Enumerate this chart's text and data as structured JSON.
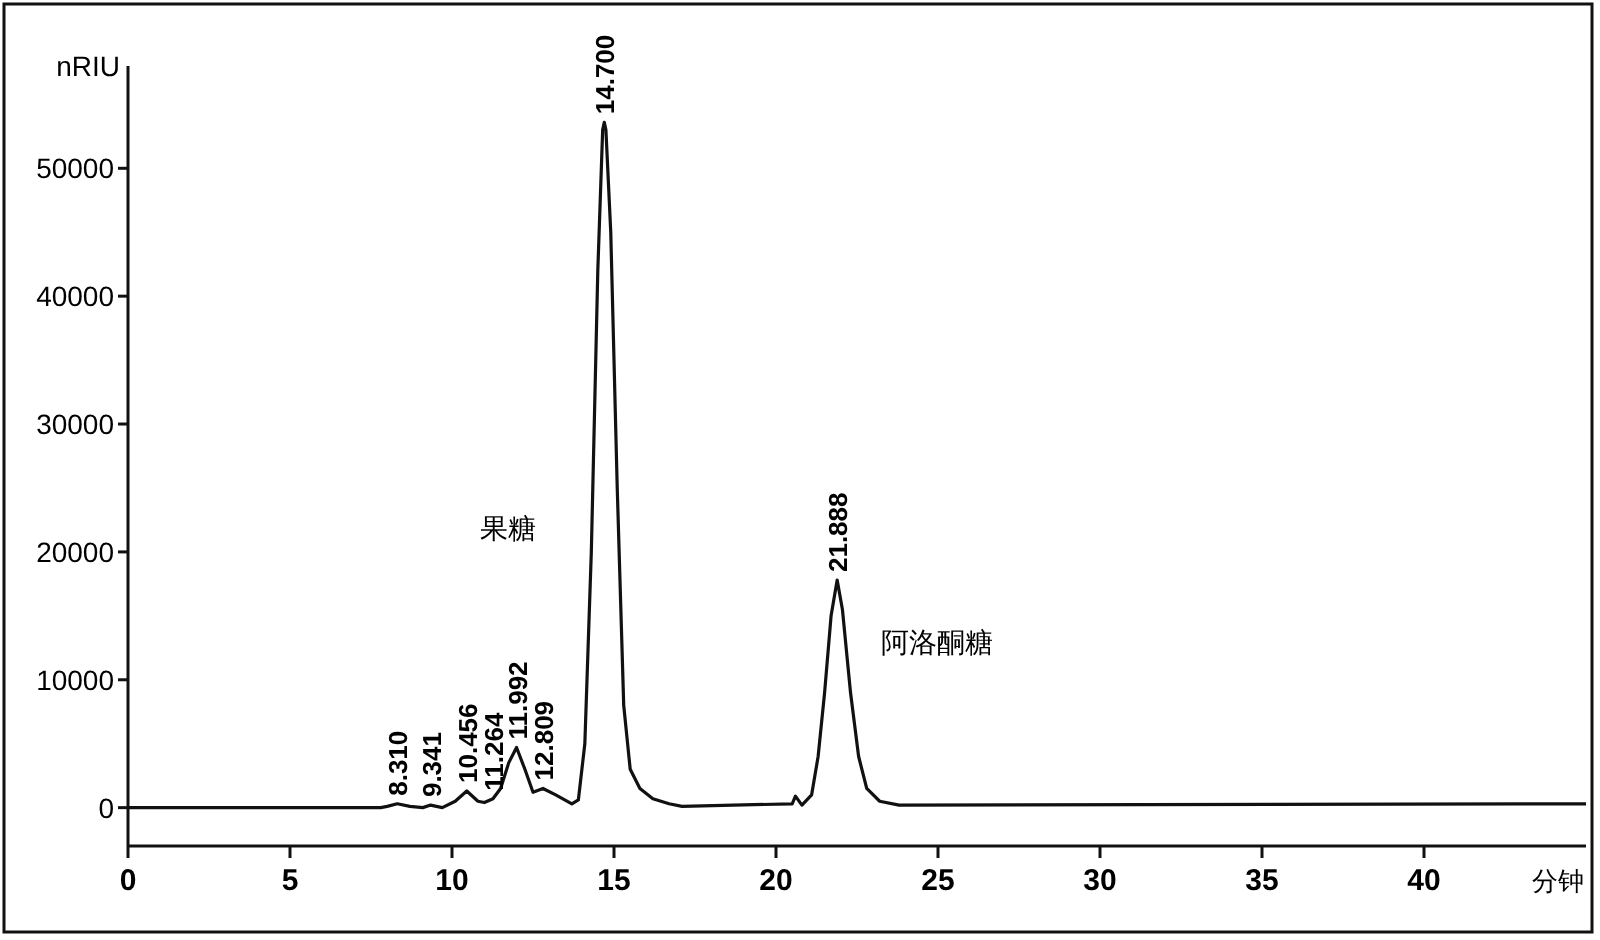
{
  "chart_data": {
    "type": "line",
    "xlabel": "分钟",
    "ylabel": "nRIU",
    "x": [
      0,
      7.8,
      8.0,
      8.31,
      8.7,
      9.1,
      9.341,
      9.7,
      10.1,
      10.456,
      10.8,
      11.0,
      11.264,
      11.5,
      11.75,
      11.992,
      12.25,
      12.5,
      12.809,
      13.2,
      13.7,
      13.9,
      14.1,
      14.3,
      14.5,
      14.65,
      14.7,
      14.75,
      14.9,
      15.1,
      15.3,
      15.5,
      15.8,
      16.2,
      16.7,
      17.1,
      20.5,
      20.6,
      20.8,
      21.1,
      21.3,
      21.5,
      21.7,
      21.888,
      22.05,
      22.3,
      22.55,
      22.8,
      23.2,
      23.8,
      45
    ],
    "series": [
      {
        "color": "#111111",
        "values": [
          0,
          0,
          100,
          300,
          100,
          0,
          200,
          0,
          500,
          1300,
          500,
          400,
          700,
          1500,
          3500,
          4700,
          3000,
          1200,
          1500,
          1000,
          300,
          600,
          5000,
          20000,
          42000,
          53000,
          53600,
          53000,
          45000,
          25000,
          8000,
          3000,
          1500,
          700,
          300,
          100,
          300,
          900,
          200,
          1000,
          4000,
          9000,
          15000,
          17800,
          15500,
          9000,
          4000,
          1500,
          500,
          200,
          300
        ]
      }
    ],
    "xlim": [
      0,
      45
    ],
    "xticks": [
      0,
      5,
      10,
      15,
      20,
      25,
      30,
      35,
      40
    ],
    "ylim": [
      -3000,
      58000
    ],
    "yticks": [
      0,
      10000,
      20000,
      30000,
      40000,
      50000
    ],
    "grid": false,
    "marker": "none",
    "line_style": "solid",
    "annotations": [
      {
        "text": "8.310",
        "x": 8.31,
        "y": 300
      },
      {
        "text": "9.341",
        "x": 9.341,
        "y": 200
      },
      {
        "text": "10.456",
        "x": 10.456,
        "y": 1300
      },
      {
        "text": "11.264",
        "x": 11.264,
        "y": 700
      },
      {
        "text": "11.992",
        "x": 11.992,
        "y": 4700
      },
      {
        "text": "12.809",
        "x": 12.809,
        "y": 1500
      },
      {
        "text": "14.700",
        "x": 14.7,
        "y": 53600
      },
      {
        "text": "21.888",
        "x": 21.888,
        "y": 17800
      },
      "果糖",
      {
        "text": "阿洛酮糖",
        "x": 21.888,
        "y": 17800
      }
    ]
  }
}
